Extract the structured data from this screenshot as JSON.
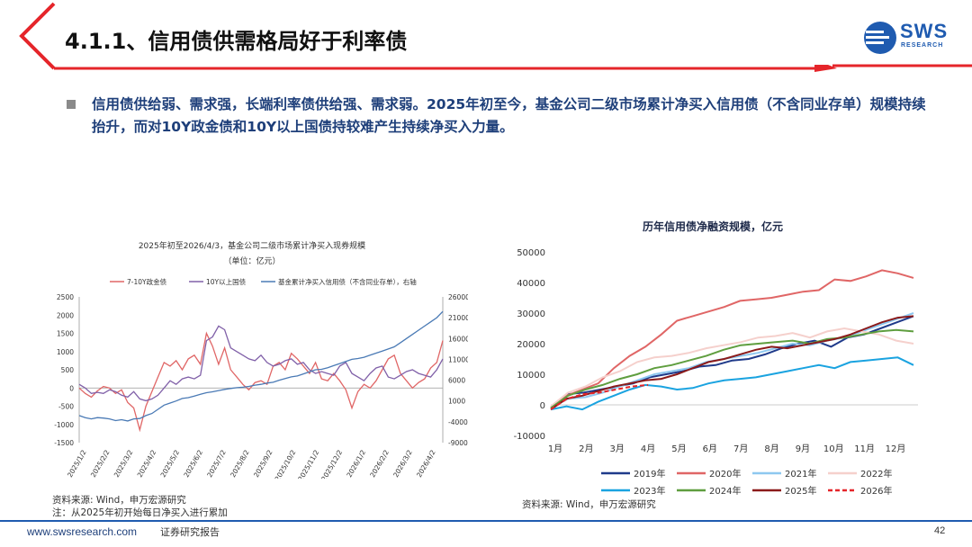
{
  "slide": {
    "title": "4.1.1、信用债供需格局好于利率债",
    "bullet": "信用债供给弱、需求强，长端利率债供给强、需求弱。2025年初至今，基金公司二级市场累计净买入信用债（不含同业存单）规模持续抬升，而对10Y政金债和10Y以上国债持较难产生持续净买入力量。",
    "logo_main": "SWS",
    "logo_sub": "RESEARCH",
    "brand_color": "#1f5bb0",
    "accent_color": "#e5252a"
  },
  "left_source": "资料来源: Wind，申万宏源研究",
  "left_note": "注：从2025年初开始每日净买入进行累加",
  "right_source": "资料来源: Wind，申万宏源研究",
  "footer": {
    "url": "www.swsresearch.com",
    "type": "证券研究报告",
    "page": "42"
  },
  "chart_data": [
    {
      "type": "line",
      "title": "2025年初至2026/4/3，基金公司二级市场累计净买入现券规模",
      "subtitle": "（单位：亿元）",
      "y_left": {
        "ylim": [
          -1500,
          2500
        ],
        "ticks": [
          2500,
          2000,
          1500,
          1000,
          500,
          0,
          -500,
          -1000,
          -1500
        ]
      },
      "y_right": {
        "ylim": [
          -9000,
          26000
        ],
        "ticks": [
          26000,
          21000,
          16000,
          11000,
          6000,
          1000,
          -4000,
          -9000
        ]
      },
      "x_ticks": [
        "2025/1/2",
        "2025/2/2",
        "2025/3/2",
        "2025/4/2",
        "2025/5/2",
        "2025/6/2",
        "2025/7/2",
        "2025/8/2",
        "2025/9/2",
        "2025/10/2",
        "2025/11/2",
        "2025/12/2",
        "2026/1/2",
        "2026/2/2",
        "2026/3/2",
        "2026/4/2"
      ],
      "series": [
        {
          "name": "7-10Y政金债",
          "color": "#e06666",
          "axis": "left",
          "values": [
            0,
            -150,
            -250,
            -80,
            40,
            0,
            -150,
            -50,
            -400,
            -550,
            -1150,
            -500,
            -100,
            300,
            700,
            600,
            750,
            500,
            800,
            900,
            650,
            1500,
            1150,
            650,
            1100,
            500,
            300,
            100,
            -50,
            150,
            200,
            100,
            600,
            700,
            500,
            950,
            800,
            600,
            400,
            700,
            250,
            200,
            400,
            200,
            -50,
            -550,
            -100,
            100,
            0,
            200,
            500,
            800,
            900,
            400,
            200,
            0,
            150,
            250,
            550,
            700,
            1300
          ]
        },
        {
          "name": "10Y以上国债",
          "color": "#8060a8",
          "axis": "left",
          "values": [
            100,
            0,
            -150,
            -120,
            -150,
            -50,
            -100,
            -200,
            -250,
            -100,
            -300,
            -350,
            -300,
            -200,
            0,
            200,
            100,
            250,
            300,
            250,
            350,
            1300,
            1400,
            1700,
            1600,
            1100,
            1000,
            900,
            800,
            750,
            900,
            700,
            600,
            650,
            750,
            800,
            650,
            700,
            500,
            400,
            450,
            400,
            350,
            600,
            700,
            400,
            300,
            200,
            400,
            550,
            600,
            300,
            250,
            350,
            450,
            500,
            400,
            350,
            300,
            500,
            800
          ]
        },
        {
          "name": "基金累计净买入信用债（不含同业存单），右轴",
          "color": "#4a7ab5",
          "axis": "right",
          "values": [
            -2500,
            -3000,
            -3300,
            -3000,
            -3100,
            -3300,
            -3700,
            -3500,
            -3800,
            -3300,
            -3200,
            -2500,
            -2000,
            -1000,
            0,
            500,
            1000,
            1600,
            1800,
            2200,
            2600,
            3000,
            3200,
            3500,
            3800,
            4000,
            4200,
            4300,
            4500,
            4800,
            5000,
            5300,
            5500,
            6000,
            6400,
            6800,
            7000,
            7500,
            8000,
            8500,
            8600,
            9000,
            9500,
            10000,
            10500,
            11000,
            11200,
            11500,
            12000,
            12500,
            13000,
            13500,
            14000,
            15000,
            16000,
            17000,
            18000,
            19000,
            20000,
            21000,
            22500
          ]
        }
      ]
    },
    {
      "type": "line",
      "title": "历年信用债净融资规模，亿元",
      "ylim": [
        -10000,
        50000
      ],
      "y_ticks": [
        50000,
        40000,
        30000,
        20000,
        10000,
        0,
        -10000
      ],
      "x_ticks": [
        "1月",
        "2月",
        "3月",
        "4月",
        "5月",
        "6月",
        "7月",
        "8月",
        "9月",
        "10月",
        "11月",
        "12月"
      ],
      "series": [
        {
          "name": "2019年",
          "color": "#1f3a8a",
          "dash": false,
          "values": [
            -1000,
            3500,
            4000,
            5000,
            6000,
            7000,
            9000,
            10000,
            11000,
            12500,
            13000,
            14500,
            15000,
            16500,
            18500,
            20000,
            21000,
            19000,
            22000,
            23000,
            25000,
            27000,
            29000
          ]
        },
        {
          "name": "2020年",
          "color": "#e06666",
          "dash": false,
          "values": [
            -1000,
            3000,
            5000,
            7000,
            12000,
            16000,
            19000,
            23000,
            27500,
            29000,
            30500,
            32000,
            34000,
            34500,
            35000,
            36000,
            37000,
            37500,
            41000,
            40500,
            42000,
            44000,
            43000,
            41500
          ]
        },
        {
          "name": "2021年",
          "color": "#8ec8f0",
          "dash": false,
          "values": [
            -1000,
            2000,
            2500,
            4000,
            6000,
            8000,
            10000,
            11000,
            12000,
            14000,
            15000,
            16000,
            17000,
            18500,
            20000,
            19500,
            21000,
            22000,
            24000,
            26000,
            28000,
            30000
          ]
        },
        {
          "name": "2022年",
          "color": "#f5d0cc",
          "dash": false,
          "values": [
            -500,
            4000,
            6000,
            9000,
            11000,
            14000,
            15500,
            16000,
            17000,
            18500,
            19500,
            20500,
            22000,
            22500,
            23500,
            22000,
            24000,
            25000,
            24000,
            23000,
            21000,
            20000
          ]
        },
        {
          "name": "2023年",
          "color": "#1aa3e0",
          "dash": false,
          "values": [
            -1500,
            -500,
            -1500,
            1000,
            3000,
            5000,
            6500,
            6000,
            5000,
            5500,
            7000,
            8000,
            8500,
            9000,
            10000,
            11000,
            12000,
            13000,
            12000,
            14000,
            14500,
            15000,
            15500,
            13000
          ]
        },
        {
          "name": "2024年",
          "color": "#5f9e3f",
          "dash": false,
          "values": [
            -1000,
            3000,
            5000,
            6500,
            8500,
            10000,
            12000,
            13000,
            14500,
            16000,
            18000,
            19500,
            20000,
            20500,
            21000,
            20000,
            21500,
            22000,
            23000,
            24000,
            24500,
            24000
          ]
        },
        {
          "name": "2025年",
          "color": "#8b1a1a",
          "dash": false,
          "values": [
            -1500,
            2000,
            3000,
            4500,
            6000,
            7000,
            8000,
            8500,
            10000,
            12000,
            14000,
            15000,
            16500,
            18000,
            19000,
            18500,
            19500,
            20500,
            21500,
            23000,
            25000,
            27000,
            28500,
            29000
          ]
        },
        {
          "name": "2026年",
          "color": "#e5252a",
          "dash": true,
          "values": [
            -1500,
            2000,
            3500,
            4000,
            5000,
            6000,
            6500
          ]
        }
      ]
    }
  ]
}
